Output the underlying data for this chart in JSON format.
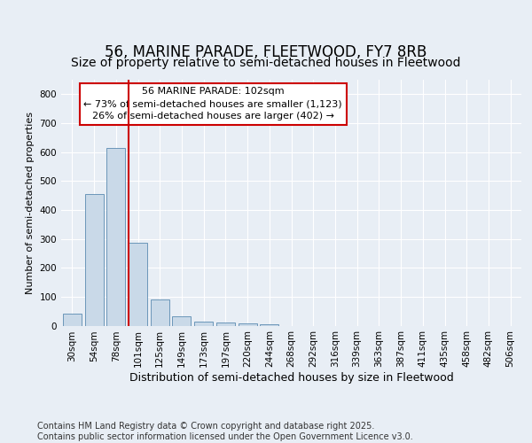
{
  "title1": "56, MARINE PARADE, FLEETWOOD, FY7 8RB",
  "title2": "Size of property relative to semi-detached houses in Fleetwood",
  "xlabel": "Distribution of semi-detached houses by size in Fleetwood",
  "ylabel": "Number of semi-detached properties",
  "categories": [
    "30sqm",
    "54sqm",
    "78sqm",
    "101sqm",
    "125sqm",
    "149sqm",
    "173sqm",
    "197sqm",
    "220sqm",
    "244sqm",
    "268sqm",
    "292sqm",
    "316sqm",
    "339sqm",
    "363sqm",
    "387sqm",
    "411sqm",
    "435sqm",
    "458sqm",
    "482sqm",
    "506sqm"
  ],
  "values": [
    40,
    455,
    615,
    285,
    90,
    32,
    15,
    12,
    8,
    5,
    0,
    0,
    0,
    0,
    0,
    0,
    0,
    0,
    0,
    0,
    0
  ],
  "bar_color": "#c9d9e8",
  "bar_edge_color": "#5a8ab0",
  "annotation_line1": "56 MARINE PARADE: 102sqm",
  "annotation_line2": "← 73% of semi-detached houses are smaller (1,123)",
  "annotation_line3": "26% of semi-detached houses are larger (402) →",
  "vline_x_index": 3,
  "vline_color": "#cc0000",
  "annotation_box_color": "#cc0000",
  "ylim": [
    0,
    850
  ],
  "yticks": [
    0,
    100,
    200,
    300,
    400,
    500,
    600,
    700,
    800
  ],
  "background_color": "#e8eef5",
  "plot_bg_color": "#e8eef5",
  "footer": "Contains HM Land Registry data © Crown copyright and database right 2025.\nContains public sector information licensed under the Open Government Licence v3.0.",
  "title1_fontsize": 12,
  "title2_fontsize": 10,
  "annot_fontsize": 8,
  "footer_fontsize": 7,
  "ylabel_fontsize": 8,
  "xlabel_fontsize": 9,
  "tick_fontsize": 7.5
}
